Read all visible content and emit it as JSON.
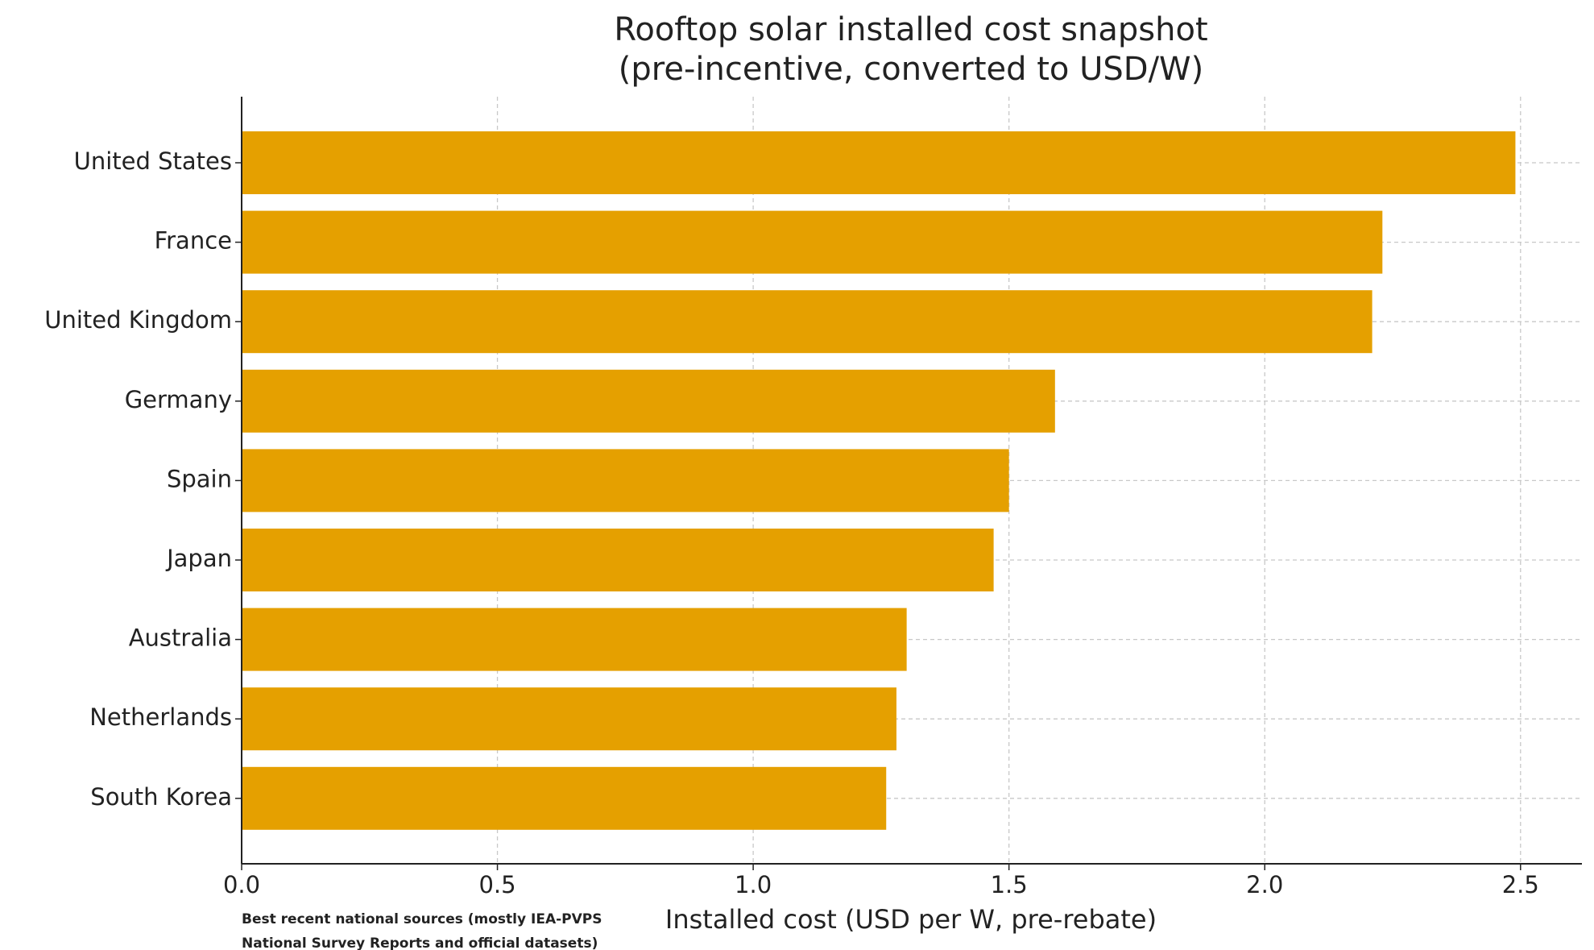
{
  "chart_data": {
    "type": "barh",
    "title": [
      "Rooftop solar installed cost snapshot",
      "(pre-incentive, converted to USD/W)"
    ],
    "xlabel": "Installed cost (USD per W, pre-rebate)",
    "footnote": [
      "Best recent national sources (mostly IEA-PVPS",
      "National Survey Reports and official datasets)"
    ],
    "categories": [
      "United States",
      "France",
      "United Kingdom",
      "Germany",
      "Spain",
      "Japan",
      "Australia",
      "Netherlands",
      "South Korea"
    ],
    "values": [
      2.49,
      2.23,
      2.21,
      1.59,
      1.5,
      1.47,
      1.3,
      1.28,
      1.26
    ],
    "color": "#e5a000",
    "xlim": [
      0,
      2.62
    ],
    "xticks": [
      {
        "value": 0,
        "label": "0.0"
      },
      0.5,
      {
        "value": 1,
        "label": "1.0"
      },
      1.5,
      {
        "value": 2,
        "label": "2.0"
      },
      2.5
    ],
    "grid": true
  }
}
